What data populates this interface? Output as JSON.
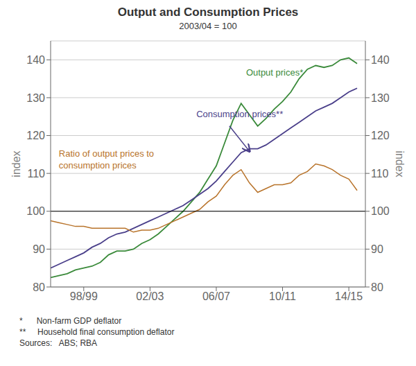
{
  "chart_data": {
    "type": "line",
    "title": "Output and Consumption Prices",
    "subtitle": "2003/04 = 100",
    "x": [
      1996.5,
      1997.0,
      1997.5,
      1998.0,
      1998.5,
      1999.0,
      1999.5,
      2000.0,
      2000.5,
      2001.0,
      2001.5,
      2002.0,
      2002.5,
      2003.0,
      2003.5,
      2004.0,
      2004.5,
      2005.0,
      2005.5,
      2006.0,
      2006.5,
      2007.0,
      2007.5,
      2008.0,
      2008.5,
      2009.0,
      2009.5,
      2010.0,
      2010.5,
      2011.0,
      2011.5,
      2012.0,
      2012.5,
      2013.0,
      2013.5,
      2014.0,
      2014.5,
      2015.0
    ],
    "xlim": [
      1996.5,
      2015.5
    ],
    "xticks": [
      {
        "value": 1998.5,
        "label": "98/99"
      },
      {
        "value": 2002.5,
        "label": "02/03"
      },
      {
        "value": 2006.5,
        "label": "06/07"
      },
      {
        "value": 2010.5,
        "label": "10/11"
      },
      {
        "value": 2014.5,
        "label": "14/15"
      }
    ],
    "ylabel": "index",
    "ylim": [
      80,
      145
    ],
    "yticks": [
      80,
      90,
      100,
      110,
      120,
      130,
      140
    ],
    "y2label": "index",
    "y2lim": [
      80,
      145
    ],
    "y2ticks": [
      80,
      90,
      100,
      110,
      120,
      130,
      140
    ],
    "grid": true,
    "hline": 100,
    "series": [
      {
        "name": "Output prices*",
        "color": "#3a8a3a",
        "values": [
          82.5,
          83.0,
          83.5,
          84.5,
          85.0,
          85.5,
          86.5,
          88.5,
          89.5,
          89.5,
          90.0,
          91.5,
          92.5,
          94.0,
          96.0,
          98.0,
          100.0,
          102.5,
          105.0,
          108.5,
          112.0,
          118.0,
          124.0,
          128.5,
          125.5,
          122.5,
          124.5,
          127.0,
          129.0,
          131.5,
          135.0,
          137.5,
          138.5,
          138.0,
          138.5,
          140.0,
          140.5,
          139.0
        ]
      },
      {
        "name": "Consumption prices**",
        "color": "#4a3f8a",
        "values": [
          85.0,
          86.0,
          87.0,
          88.0,
          89.0,
          90.5,
          91.5,
          93.0,
          94.0,
          94.5,
          95.5,
          96.5,
          97.5,
          98.5,
          99.5,
          100.5,
          101.5,
          103.0,
          104.5,
          106.0,
          108.0,
          110.5,
          113.0,
          115.5,
          116.5,
          116.5,
          117.5,
          119.0,
          120.5,
          122.0,
          123.5,
          125.0,
          126.5,
          127.5,
          128.5,
          130.0,
          131.5,
          132.5
        ]
      },
      {
        "name": "Ratio of output prices to\nconsumption prices",
        "color": "#b8732a",
        "values": [
          97.5,
          97.0,
          96.5,
          96.0,
          96.0,
          95.5,
          95.5,
          95.5,
          95.5,
          95.5,
          94.5,
          95.0,
          95.0,
          95.5,
          96.5,
          97.5,
          98.5,
          99.5,
          100.5,
          102.5,
          104.0,
          107.0,
          109.5,
          111.0,
          107.5,
          105.0,
          106.0,
          107.0,
          107.0,
          107.5,
          109.5,
          110.5,
          112.5,
          112.0,
          111.0,
          109.5,
          108.5,
          105.5
        ]
      }
    ],
    "notes": [
      "*      Non-farm GDP deflator",
      "**     Household final consumption deflator",
      "Sources:   ABS; RBA"
    ]
  }
}
